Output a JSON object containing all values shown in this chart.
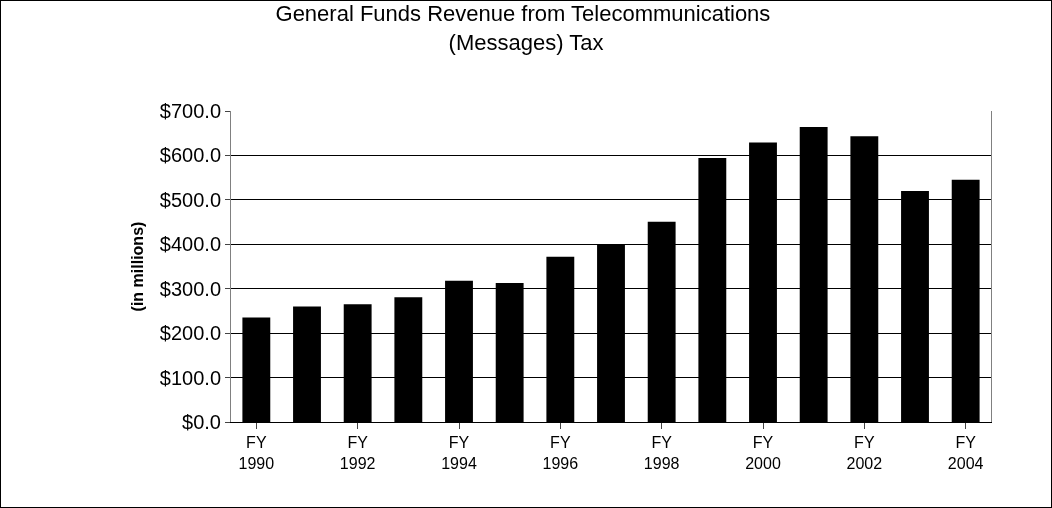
{
  "chart_data": {
    "type": "bar",
    "title": "General Funds Revenue from Telecommunications (Messages) Tax",
    "ylabel": "(in millions)",
    "categories": [
      "FY 1990",
      null,
      "FY 1992",
      null,
      "FY 1994",
      null,
      "FY 1996",
      null,
      "FY 1998",
      null,
      "FY 2000",
      null,
      "FY 2002",
      null,
      "FY 2004"
    ],
    "values": [
      235,
      260,
      265,
      281,
      318,
      313,
      372,
      399,
      451,
      594,
      629,
      664,
      643,
      520,
      545
    ],
    "color": "#000000",
    "ylim": [
      0,
      700
    ],
    "yticks": [
      {
        "value": 0,
        "label": "$0.0"
      },
      {
        "value": 100,
        "label": "$100.0"
      },
      {
        "value": 200,
        "label": "$200.0"
      },
      {
        "value": 300,
        "label": "$300.0"
      },
      {
        "value": 400,
        "label": "$400.0"
      },
      {
        "value": 500,
        "label": "$500.0"
      },
      {
        "value": 600,
        "label": "$600.0"
      },
      {
        "value": 700,
        "label": "$700.0"
      }
    ],
    "grid": "y"
  }
}
